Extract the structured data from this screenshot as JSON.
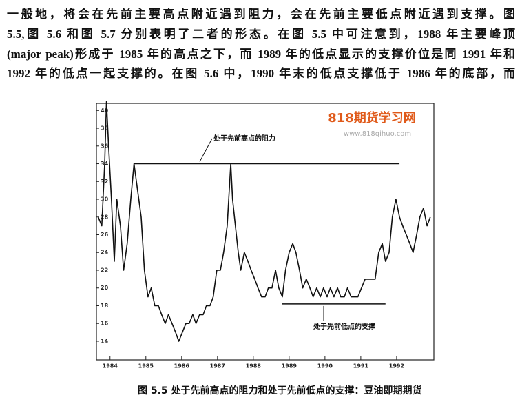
{
  "paragraph": {
    "lines": [
      "一般地，将会在先前主要高点附近遇到阻力，会在先前主要低点附近遇到支撑。图",
      "5.5,图 5.6 和图 5.7 分别表明了二者的形态。在图 5.5 中可注意到，1988 年主要峰顶",
      "(major peak)形成于 1985 年的高点之下，而 1989 年的低点显示的支撑价位是同 1991 年和",
      "1992 年的低点一起支撑的。在图 5.6 中，1990 年末的低点支撑低于 1986 年的底部，而"
    ]
  },
  "chart_data": {
    "type": "line",
    "watermark": "818期货学习网",
    "watermark_url": "www.818qihuo.com",
    "x": [
      1983.67,
      1983.77,
      1983.85,
      1983.9,
      1983.96,
      1984.04,
      1984.12,
      1984.19,
      1984.29,
      1984.38,
      1984.48,
      1984.58,
      1984.67,
      1984.77,
      1984.87,
      1984.96,
      1985.06,
      1985.15,
      1985.25,
      1985.35,
      1985.44,
      1985.54,
      1985.63,
      1985.73,
      1985.83,
      1985.92,
      1986.02,
      1986.12,
      1986.21,
      1986.31,
      1986.4,
      1986.5,
      1986.6,
      1986.69,
      1986.79,
      1986.88,
      1986.98,
      1987.08,
      1987.17,
      1987.27,
      1987.37,
      1987.42,
      1987.5,
      1987.58,
      1987.65,
      1987.75,
      1987.85,
      1987.94,
      1988.04,
      1988.13,
      1988.23,
      1988.33,
      1988.42,
      1988.52,
      1988.62,
      1988.71,
      1988.81,
      1988.9,
      1989.0,
      1989.1,
      1989.19,
      1989.29,
      1989.38,
      1989.48,
      1989.58,
      1989.67,
      1989.77,
      1989.87,
      1989.96,
      1990.06,
      1990.15,
      1990.25,
      1990.35,
      1990.44,
      1990.54,
      1990.63,
      1990.73,
      1990.83,
      1990.92,
      1991.02,
      1991.12,
      1991.21,
      1991.31,
      1991.4,
      1991.5,
      1991.6,
      1991.69,
      1991.79,
      1991.88,
      1991.98,
      1992.08,
      1992.17,
      1992.27,
      1992.37,
      1992.46,
      1992.56,
      1992.65,
      1992.75,
      1992.85,
      1992.94
    ],
    "values": [
      28,
      27,
      34,
      41,
      36,
      30,
      23,
      30,
      27,
      22,
      25,
      30,
      34,
      31,
      28,
      22,
      19,
      20,
      18,
      18,
      17,
      16,
      17,
      16,
      15,
      14,
      15,
      16,
      16,
      17,
      16,
      17,
      17,
      18,
      18,
      19,
      22,
      22,
      24,
      27,
      34,
      30,
      27,
      24,
      22,
      24,
      23,
      22,
      21,
      20,
      19,
      19,
      20,
      20,
      22,
      20,
      19,
      22,
      24,
      25,
      24,
      22,
      20,
      21,
      20,
      19,
      20,
      19,
      20,
      19,
      20,
      19,
      20,
      19,
      19,
      20,
      19,
      19,
      19,
      20,
      21,
      21,
      21,
      21,
      24,
      25,
      23,
      24,
      28,
      30,
      28,
      27,
      26,
      25,
      24,
      26,
      28,
      29,
      27,
      28
    ],
    "color": "#111111",
    "xlim": [
      1983.62,
      1993.04
    ],
    "xticks": [
      1984,
      1985,
      1986,
      1987,
      1988,
      1989,
      1990,
      1991,
      1992
    ],
    "ylim": [
      11.9,
      40.8
    ],
    "yticks": [
      14,
      16,
      18,
      20,
      22,
      24,
      26,
      28,
      30,
      32,
      34,
      36,
      38,
      40
    ],
    "reference_lines": [
      {
        "value": 34,
        "x": [
          1984.67,
          1992.08
        ],
        "label": "处于先前高点的阻力"
      },
      {
        "value": 18.2,
        "x": [
          1988.81,
          1991.69
        ],
        "label": "处于先前低点的支撑"
      }
    ]
  },
  "caption": "图 5.5   处于先前高点的阻力和处于先前低点的支撑：豆油即期期货"
}
